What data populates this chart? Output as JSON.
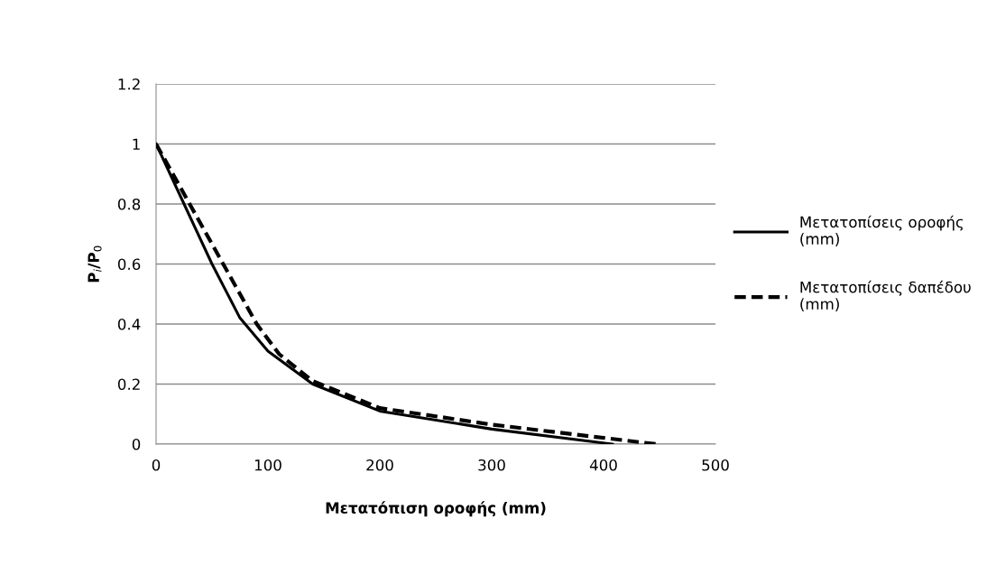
{
  "chart_data": {
    "type": "line",
    "xlabel": "Μετατόπιση οροφής (mm)",
    "ylabel": "P$_{i}$/P$_{0}$",
    "xlim": [
      0,
      500
    ],
    "xticks": [
      0,
      100,
      200,
      300,
      400,
      500
    ],
    "ylim": [
      0,
      1.2
    ],
    "yticks": [
      0,
      0.2,
      0.4,
      0.6,
      0.8,
      1,
      1.2
    ],
    "grid": "y",
    "legend": "right",
    "marker": "none",
    "series": [
      {
        "name": "Μετατοπίσεις οροφής (mm)",
        "color": "#000000",
        "line_style": "solid",
        "x": [
          0,
          25,
          50,
          75,
          100,
          140,
          200,
          300,
          408
        ],
        "values": [
          1,
          0.8,
          0.6,
          0.42,
          0.31,
          0.2,
          0.11,
          0.05,
          0
        ]
      },
      {
        "name": "Μετατοπίσεις δαπέδου (mm)",
        "color": "#000000",
        "line_style": "dashed",
        "x": [
          0,
          30,
          60,
          90,
          110,
          140,
          200,
          300,
          447
        ],
        "values": [
          1,
          0.8,
          0.6,
          0.4,
          0.3,
          0.21,
          0.12,
          0.065,
          0
        ]
      }
    ]
  }
}
